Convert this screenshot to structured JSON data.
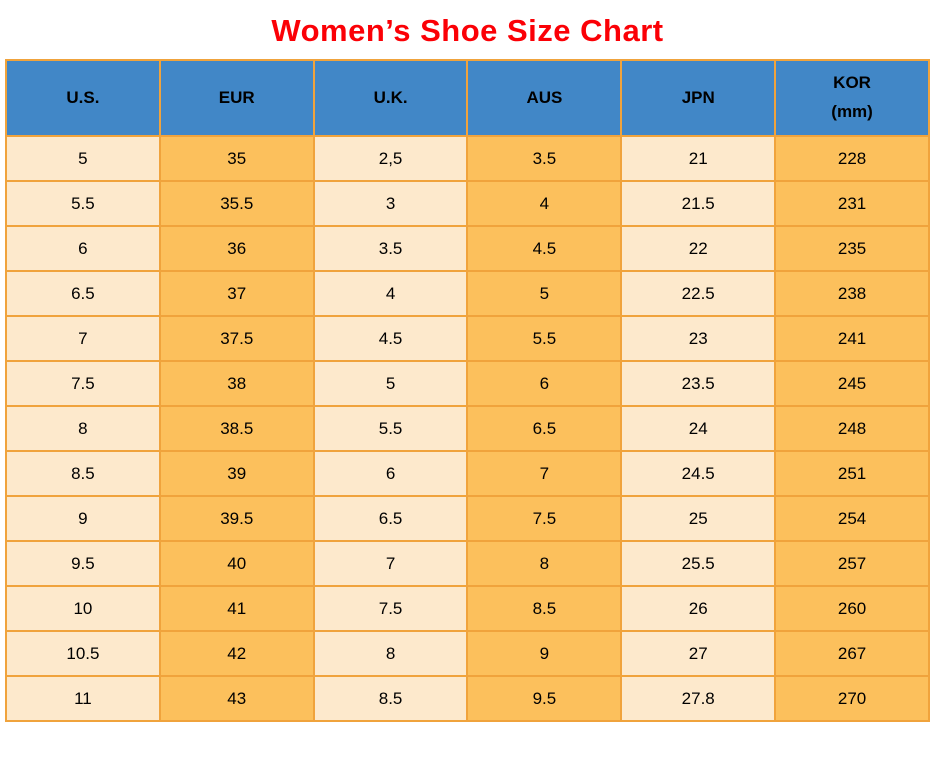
{
  "colors": {
    "title_text": "#fb0006",
    "header_background": "#4187c7",
    "grid_border": "#f0a33c",
    "cell_light": "#fde9cc",
    "cell_orange": "#fcc05c",
    "cell_text": "#000000"
  },
  "chart_data": {
    "type": "table",
    "title": "Women’s Shoe Size Chart",
    "columns": [
      "U.S.",
      "EUR",
      "U.K.",
      "AUS",
      "JPN",
      "KOR\n(mm)"
    ],
    "rows": [
      [
        "5",
        "35",
        "2,5",
        "3.5",
        "21",
        "228"
      ],
      [
        "5.5",
        "35.5",
        "3",
        "4",
        "21.5",
        "231"
      ],
      [
        "6",
        "36",
        "3.5",
        "4.5",
        "22",
        "235"
      ],
      [
        "6.5",
        "37",
        "4",
        "5",
        "22.5",
        "238"
      ],
      [
        "7",
        "37.5",
        "4.5",
        "5.5",
        "23",
        "241"
      ],
      [
        "7.5",
        "38",
        "5",
        "6",
        "23.5",
        "245"
      ],
      [
        "8",
        "38.5",
        "5.5",
        "6.5",
        "24",
        "248"
      ],
      [
        "8.5",
        "39",
        "6",
        "7",
        "24.5",
        "251"
      ],
      [
        "9",
        "39.5",
        "6.5",
        "7.5",
        "25",
        "254"
      ],
      [
        "9.5",
        "40",
        "7",
        "8",
        "25.5",
        "257"
      ],
      [
        "10",
        "41",
        "7.5",
        "8.5",
        "26",
        "260"
      ],
      [
        "10.5",
        "42",
        "8",
        "9",
        "27",
        "267"
      ],
      [
        "11",
        "43",
        "8.5",
        "9.5",
        "27.8",
        "270"
      ]
    ]
  }
}
